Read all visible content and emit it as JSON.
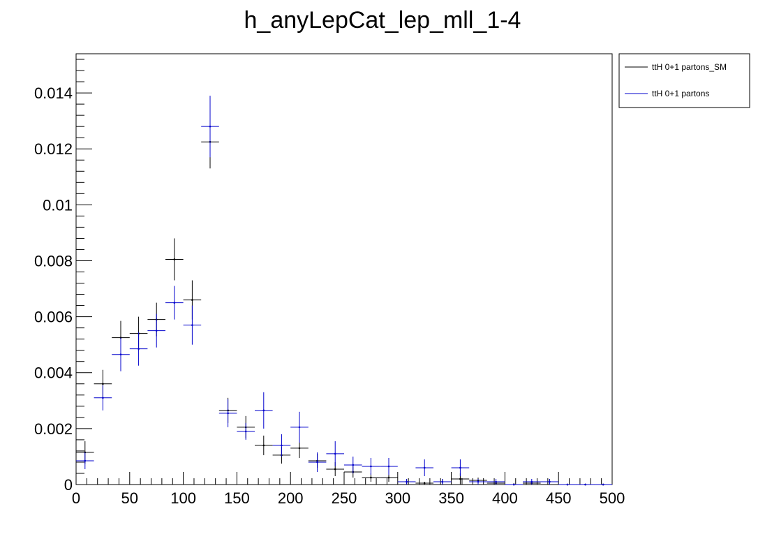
{
  "chart_data": {
    "type": "scatter",
    "title": "h_anyLepCat_lep_mll_1-4",
    "xlabel": "",
    "ylabel": "",
    "xlim": [
      0,
      500
    ],
    "ylim": [
      0,
      0.0154
    ],
    "grid": false,
    "legend_position": "top-right, outside plot",
    "x_ticks": [
      0,
      50,
      100,
      150,
      200,
      250,
      300,
      350,
      400,
      450,
      500
    ],
    "x_tick_labels": [
      "0",
      "50",
      "100",
      "150",
      "200",
      "250",
      "300",
      "350",
      "400",
      "450",
      "500"
    ],
    "y_ticks": [
      0,
      0.002,
      0.004,
      0.006,
      0.008,
      0.01,
      0.012,
      0.014
    ],
    "y_tick_labels": [
      "0",
      "0.002",
      "0.004",
      "0.006",
      "0.008",
      "0.01",
      "0.012",
      "0.014"
    ],
    "bin_width": 16.667,
    "x": [
      8.33,
      25,
      41.67,
      58.33,
      75,
      91.67,
      108.33,
      125,
      141.67,
      158.33,
      175,
      191.67,
      208.33,
      225,
      241.67,
      258.33,
      275,
      291.67,
      308.33,
      325,
      341.67,
      358.33,
      375,
      391.67,
      408.33,
      425,
      441.67,
      458.33,
      475,
      491.67
    ],
    "series": [
      {
        "name": "ttH 0+1 partons_SM",
        "color": "#000000",
        "values": [
          0.00115,
          0.0036,
          0.00525,
          0.0054,
          0.0059,
          0.00805,
          0.0066,
          0.01225,
          0.00265,
          0.00205,
          0.0014,
          0.00105,
          0.0013,
          0.00085,
          0.00055,
          0.00045,
          0.00025,
          0.00025,
          0.0001,
          5e-05,
          0.0001,
          0.0002,
          0.00015,
          5e-05,
          0.0,
          5e-05,
          0.0001,
          0.0,
          0.0,
          0.0
        ],
        "errors": [
          0.0004,
          0.0005,
          0.0006,
          0.0006,
          0.0006,
          0.00075,
          0.0007,
          0.00095,
          0.00045,
          0.0004,
          0.00035,
          0.0003,
          0.00035,
          0.00025,
          0.00025,
          0.0002,
          0.00015,
          0.00015,
          0.0001,
          5e-05,
          0.0001,
          0.0002,
          0.0001,
          5e-05,
          5e-05,
          5e-05,
          0.0001,
          3e-05,
          3e-05,
          3e-05
        ]
      },
      {
        "name": "ttH 0+1 partons",
        "color": "#0000cc",
        "values": [
          0.00085,
          0.0031,
          0.00465,
          0.00485,
          0.0055,
          0.0065,
          0.0057,
          0.0128,
          0.00255,
          0.0019,
          0.00265,
          0.0014,
          0.00205,
          0.0008,
          0.0011,
          0.0007,
          0.00065,
          0.00065,
          0.0001,
          0.0006,
          0.0001,
          0.0006,
          0.0001,
          0.0001,
          0.0,
          0.0001,
          0.0001,
          0.0,
          0.0,
          0.0
        ],
        "errors": [
          0.0003,
          0.00045,
          0.0006,
          0.0006,
          0.0006,
          0.0006,
          0.0007,
          0.0011,
          0.0005,
          0.0003,
          0.00065,
          0.0004,
          0.00055,
          0.00035,
          0.00045,
          0.0003,
          0.0003,
          0.0003,
          0.0001,
          0.0003,
          0.0001,
          0.0003,
          0.0001,
          0.0001,
          0.0,
          0.0001,
          0.0001,
          0.0,
          0.0,
          0.0
        ]
      }
    ]
  }
}
